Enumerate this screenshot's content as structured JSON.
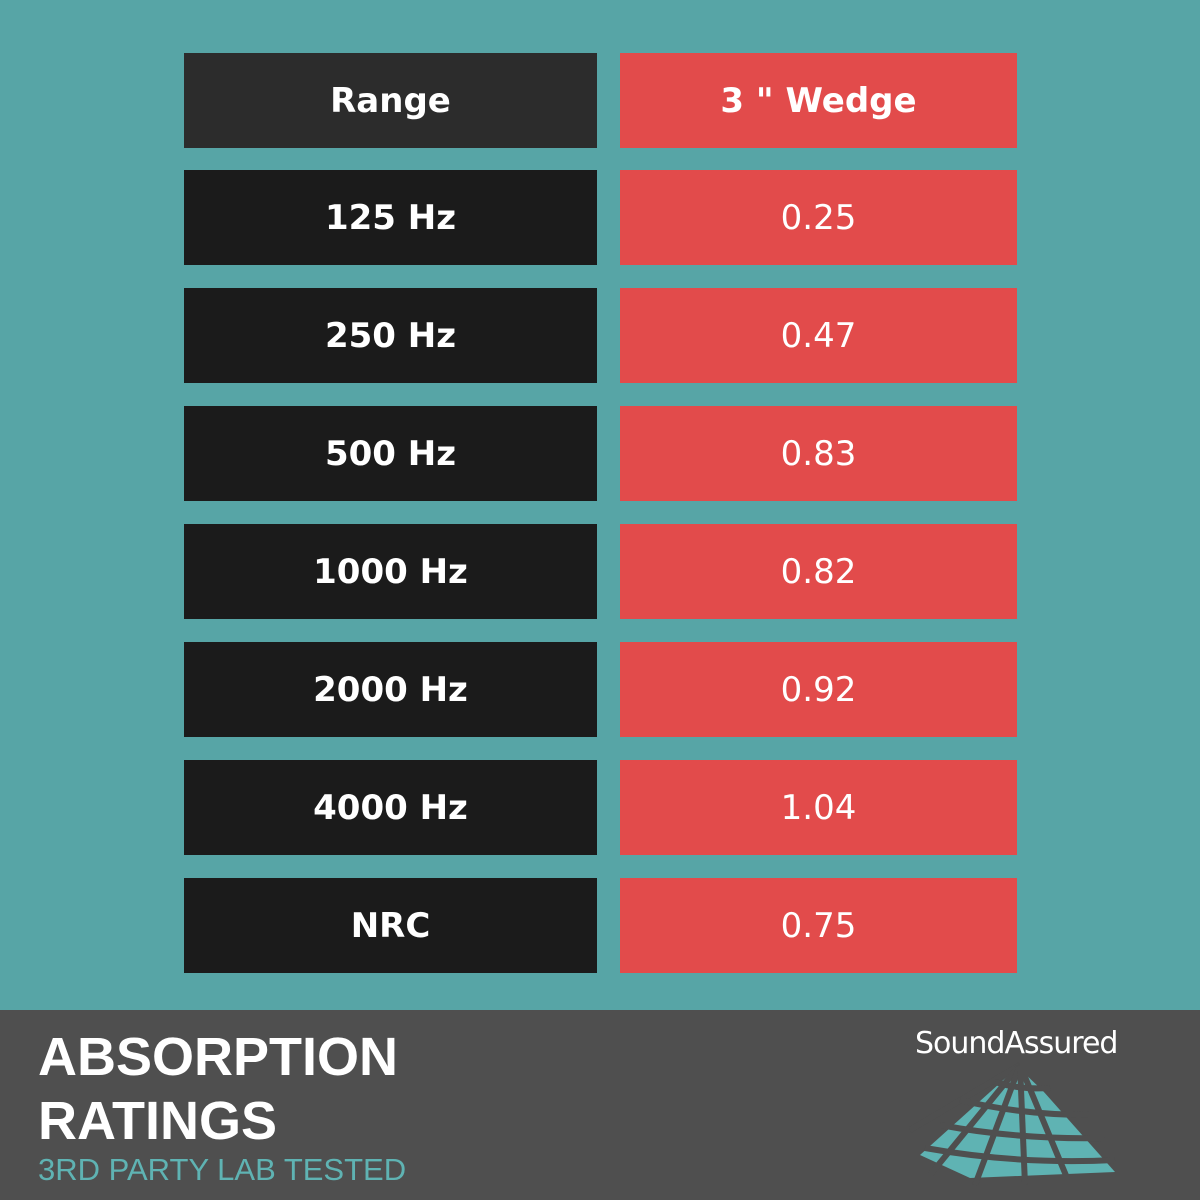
{
  "table": {
    "header": [
      "Range",
      "3 \" Wedge"
    ],
    "rows": [
      [
        "125 Hz",
        "0.25"
      ],
      [
        "250 Hz",
        "0.47"
      ],
      [
        "500 Hz",
        "0.83"
      ],
      [
        "1000 Hz",
        "0.82"
      ],
      [
        "2000 Hz",
        "0.92"
      ],
      [
        "4000 Hz",
        "1.04"
      ],
      [
        "NRC",
        "0.75"
      ]
    ]
  },
  "footer": {
    "title_lines": [
      "ABSORPTION",
      "RATINGS"
    ],
    "subtitle": "3RD PARTY LAB TESTED",
    "logo": "SoundAssured"
  }
}
